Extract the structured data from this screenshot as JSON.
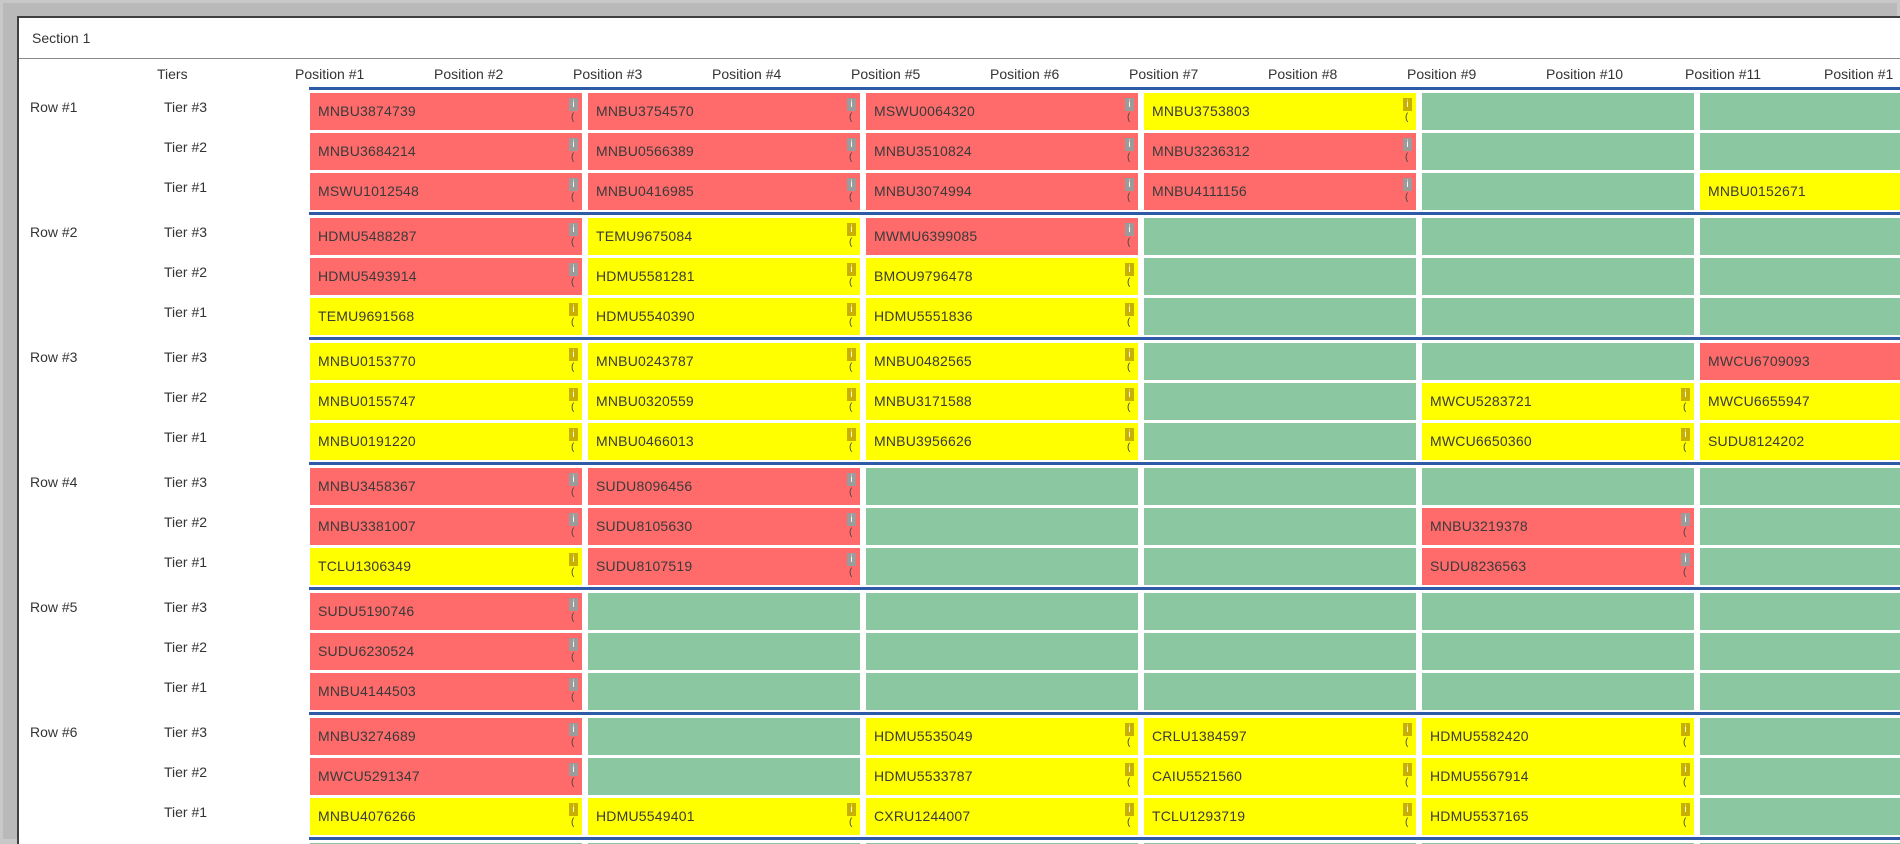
{
  "section": {
    "title": "Section 1"
  },
  "headers": {
    "tiers": "Tiers",
    "positions": [
      "Position #1",
      "Position #2",
      "Position #3",
      "Position #4",
      "Position #5",
      "Position #6",
      "Position #7",
      "Position #8",
      "Position #9",
      "Position #10",
      "Position #11",
      "Position #1"
    ]
  },
  "colors": {
    "full": "#ff6b6b",
    "partial": "#ffff00",
    "empty": "#8bc7a0",
    "row_separator": "#2f5aa8"
  },
  "info_icon": {
    "glyph": "i",
    "sub": "("
  },
  "rows": [
    {
      "label": "Row #1",
      "tiers": [
        {
          "label": "Tier #3",
          "cells": [
            {
              "id": "MNBU3874739",
              "status": "red"
            },
            {
              "id": "MNBU3754570",
              "status": "red"
            },
            {
              "id": "MSWU0064320",
              "status": "red"
            },
            {
              "id": "MNBU3753803",
              "status": "yellow"
            },
            {
              "id": "",
              "status": "empty"
            },
            {
              "id": "",
              "status": "empty"
            }
          ]
        },
        {
          "label": "Tier #2",
          "cells": [
            {
              "id": "MNBU3684214",
              "status": "red"
            },
            {
              "id": "MNBU0566389",
              "status": "red"
            },
            {
              "id": "MNBU3510824",
              "status": "red"
            },
            {
              "id": "MNBU3236312",
              "status": "red"
            },
            {
              "id": "",
              "status": "empty"
            },
            {
              "id": "",
              "status": "empty"
            }
          ]
        },
        {
          "label": "Tier #1",
          "cells": [
            {
              "id": "MSWU1012548",
              "status": "red"
            },
            {
              "id": "MNBU0416985",
              "status": "red"
            },
            {
              "id": "MNBU3074994",
              "status": "red"
            },
            {
              "id": "MNBU4111156",
              "status": "red"
            },
            {
              "id": "",
              "status": "empty"
            },
            {
              "id": "MNBU0152671",
              "status": "yellow"
            }
          ]
        }
      ]
    },
    {
      "label": "Row #2",
      "tiers": [
        {
          "label": "Tier #3",
          "cells": [
            {
              "id": "HDMU5488287",
              "status": "red"
            },
            {
              "id": "TEMU9675084",
              "status": "yellow"
            },
            {
              "id": "MWMU6399085",
              "status": "red"
            },
            {
              "id": "",
              "status": "empty"
            },
            {
              "id": "",
              "status": "empty"
            },
            {
              "id": "",
              "status": "empty"
            }
          ]
        },
        {
          "label": "Tier #2",
          "cells": [
            {
              "id": "HDMU5493914",
              "status": "red"
            },
            {
              "id": "HDMU5581281",
              "status": "yellow"
            },
            {
              "id": "BMOU9796478",
              "status": "yellow"
            },
            {
              "id": "",
              "status": "empty"
            },
            {
              "id": "",
              "status": "empty"
            },
            {
              "id": "",
              "status": "empty"
            }
          ]
        },
        {
          "label": "Tier #1",
          "cells": [
            {
              "id": "TEMU9691568",
              "status": "yellow"
            },
            {
              "id": "HDMU5540390",
              "status": "yellow"
            },
            {
              "id": "HDMU5551836",
              "status": "yellow"
            },
            {
              "id": "",
              "status": "empty"
            },
            {
              "id": "",
              "status": "empty"
            },
            {
              "id": "",
              "status": "empty"
            }
          ]
        }
      ]
    },
    {
      "label": "Row #3",
      "tiers": [
        {
          "label": "Tier #3",
          "cells": [
            {
              "id": "MNBU0153770",
              "status": "yellow"
            },
            {
              "id": "MNBU0243787",
              "status": "yellow"
            },
            {
              "id": "MNBU0482565",
              "status": "yellow"
            },
            {
              "id": "",
              "status": "empty"
            },
            {
              "id": "",
              "status": "empty"
            },
            {
              "id": "MWCU6709093",
              "status": "red"
            }
          ]
        },
        {
          "label": "Tier #2",
          "cells": [
            {
              "id": "MNBU0155747",
              "status": "yellow"
            },
            {
              "id": "MNBU0320559",
              "status": "yellow"
            },
            {
              "id": "MNBU3171588",
              "status": "yellow"
            },
            {
              "id": "",
              "status": "empty"
            },
            {
              "id": "MWCU5283721",
              "status": "yellow"
            },
            {
              "id": "MWCU6655947",
              "status": "yellow"
            }
          ]
        },
        {
          "label": "Tier #1",
          "cells": [
            {
              "id": "MNBU0191220",
              "status": "yellow"
            },
            {
              "id": "MNBU0466013",
              "status": "yellow"
            },
            {
              "id": "MNBU3956626",
              "status": "yellow"
            },
            {
              "id": "",
              "status": "empty"
            },
            {
              "id": "MWCU6650360",
              "status": "yellow"
            },
            {
              "id": "SUDU8124202",
              "status": "yellow"
            }
          ]
        }
      ]
    },
    {
      "label": "Row #4",
      "tiers": [
        {
          "label": "Tier #3",
          "cells": [
            {
              "id": "MNBU3458367",
              "status": "red"
            },
            {
              "id": "SUDU8096456",
              "status": "red"
            },
            {
              "id": "",
              "status": "empty"
            },
            {
              "id": "",
              "status": "empty"
            },
            {
              "id": "",
              "status": "empty"
            },
            {
              "id": "",
              "status": "empty"
            }
          ]
        },
        {
          "label": "Tier #2",
          "cells": [
            {
              "id": "MNBU3381007",
              "status": "red"
            },
            {
              "id": "SUDU8105630",
              "status": "red"
            },
            {
              "id": "",
              "status": "empty"
            },
            {
              "id": "",
              "status": "empty"
            },
            {
              "id": "MNBU3219378",
              "status": "red"
            },
            {
              "id": "",
              "status": "empty"
            }
          ]
        },
        {
          "label": "Tier #1",
          "cells": [
            {
              "id": "TCLU1306349",
              "status": "yellow"
            },
            {
              "id": "SUDU8107519",
              "status": "red"
            },
            {
              "id": "",
              "status": "empty"
            },
            {
              "id": "",
              "status": "empty"
            },
            {
              "id": "SUDU8236563",
              "status": "red"
            },
            {
              "id": "",
              "status": "empty"
            }
          ]
        }
      ]
    },
    {
      "label": "Row #5",
      "tiers": [
        {
          "label": "Tier #3",
          "cells": [
            {
              "id": "SUDU5190746",
              "status": "red"
            },
            {
              "id": "",
              "status": "empty"
            },
            {
              "id": "",
              "status": "empty"
            },
            {
              "id": "",
              "status": "empty"
            },
            {
              "id": "",
              "status": "empty"
            },
            {
              "id": "",
              "status": "empty"
            }
          ]
        },
        {
          "label": "Tier #2",
          "cells": [
            {
              "id": "SUDU6230524",
              "status": "red"
            },
            {
              "id": "",
              "status": "empty"
            },
            {
              "id": "",
              "status": "empty"
            },
            {
              "id": "",
              "status": "empty"
            },
            {
              "id": "",
              "status": "empty"
            },
            {
              "id": "",
              "status": "empty"
            }
          ]
        },
        {
          "label": "Tier #1",
          "cells": [
            {
              "id": "MNBU4144503",
              "status": "red"
            },
            {
              "id": "",
              "status": "empty"
            },
            {
              "id": "",
              "status": "empty"
            },
            {
              "id": "",
              "status": "empty"
            },
            {
              "id": "",
              "status": "empty"
            },
            {
              "id": "",
              "status": "empty"
            }
          ]
        }
      ]
    },
    {
      "label": "Row #6",
      "tiers": [
        {
          "label": "Tier #3",
          "cells": [
            {
              "id": "MNBU3274689",
              "status": "red"
            },
            {
              "id": "",
              "status": "empty"
            },
            {
              "id": "HDMU5535049",
              "status": "yellow"
            },
            {
              "id": "CRLU1384597",
              "status": "yellow"
            },
            {
              "id": "HDMU5582420",
              "status": "yellow"
            },
            {
              "id": "",
              "status": "empty"
            }
          ]
        },
        {
          "label": "Tier #2",
          "cells": [
            {
              "id": "MWCU5291347",
              "status": "red"
            },
            {
              "id": "",
              "status": "empty"
            },
            {
              "id": "HDMU5533787",
              "status": "yellow"
            },
            {
              "id": "CAIU5521560",
              "status": "yellow"
            },
            {
              "id": "HDMU5567914",
              "status": "yellow"
            },
            {
              "id": "",
              "status": "empty"
            }
          ]
        },
        {
          "label": "Tier #1",
          "cells": [
            {
              "id": "MNBU4076266",
              "status": "yellow"
            },
            {
              "id": "HDMU5549401",
              "status": "yellow"
            },
            {
              "id": "CXRU1244007",
              "status": "yellow"
            },
            {
              "id": "TCLU1293719",
              "status": "yellow"
            },
            {
              "id": "HDMU5537165",
              "status": "yellow"
            },
            {
              "id": "",
              "status": "empty"
            }
          ]
        }
      ]
    }
  ]
}
